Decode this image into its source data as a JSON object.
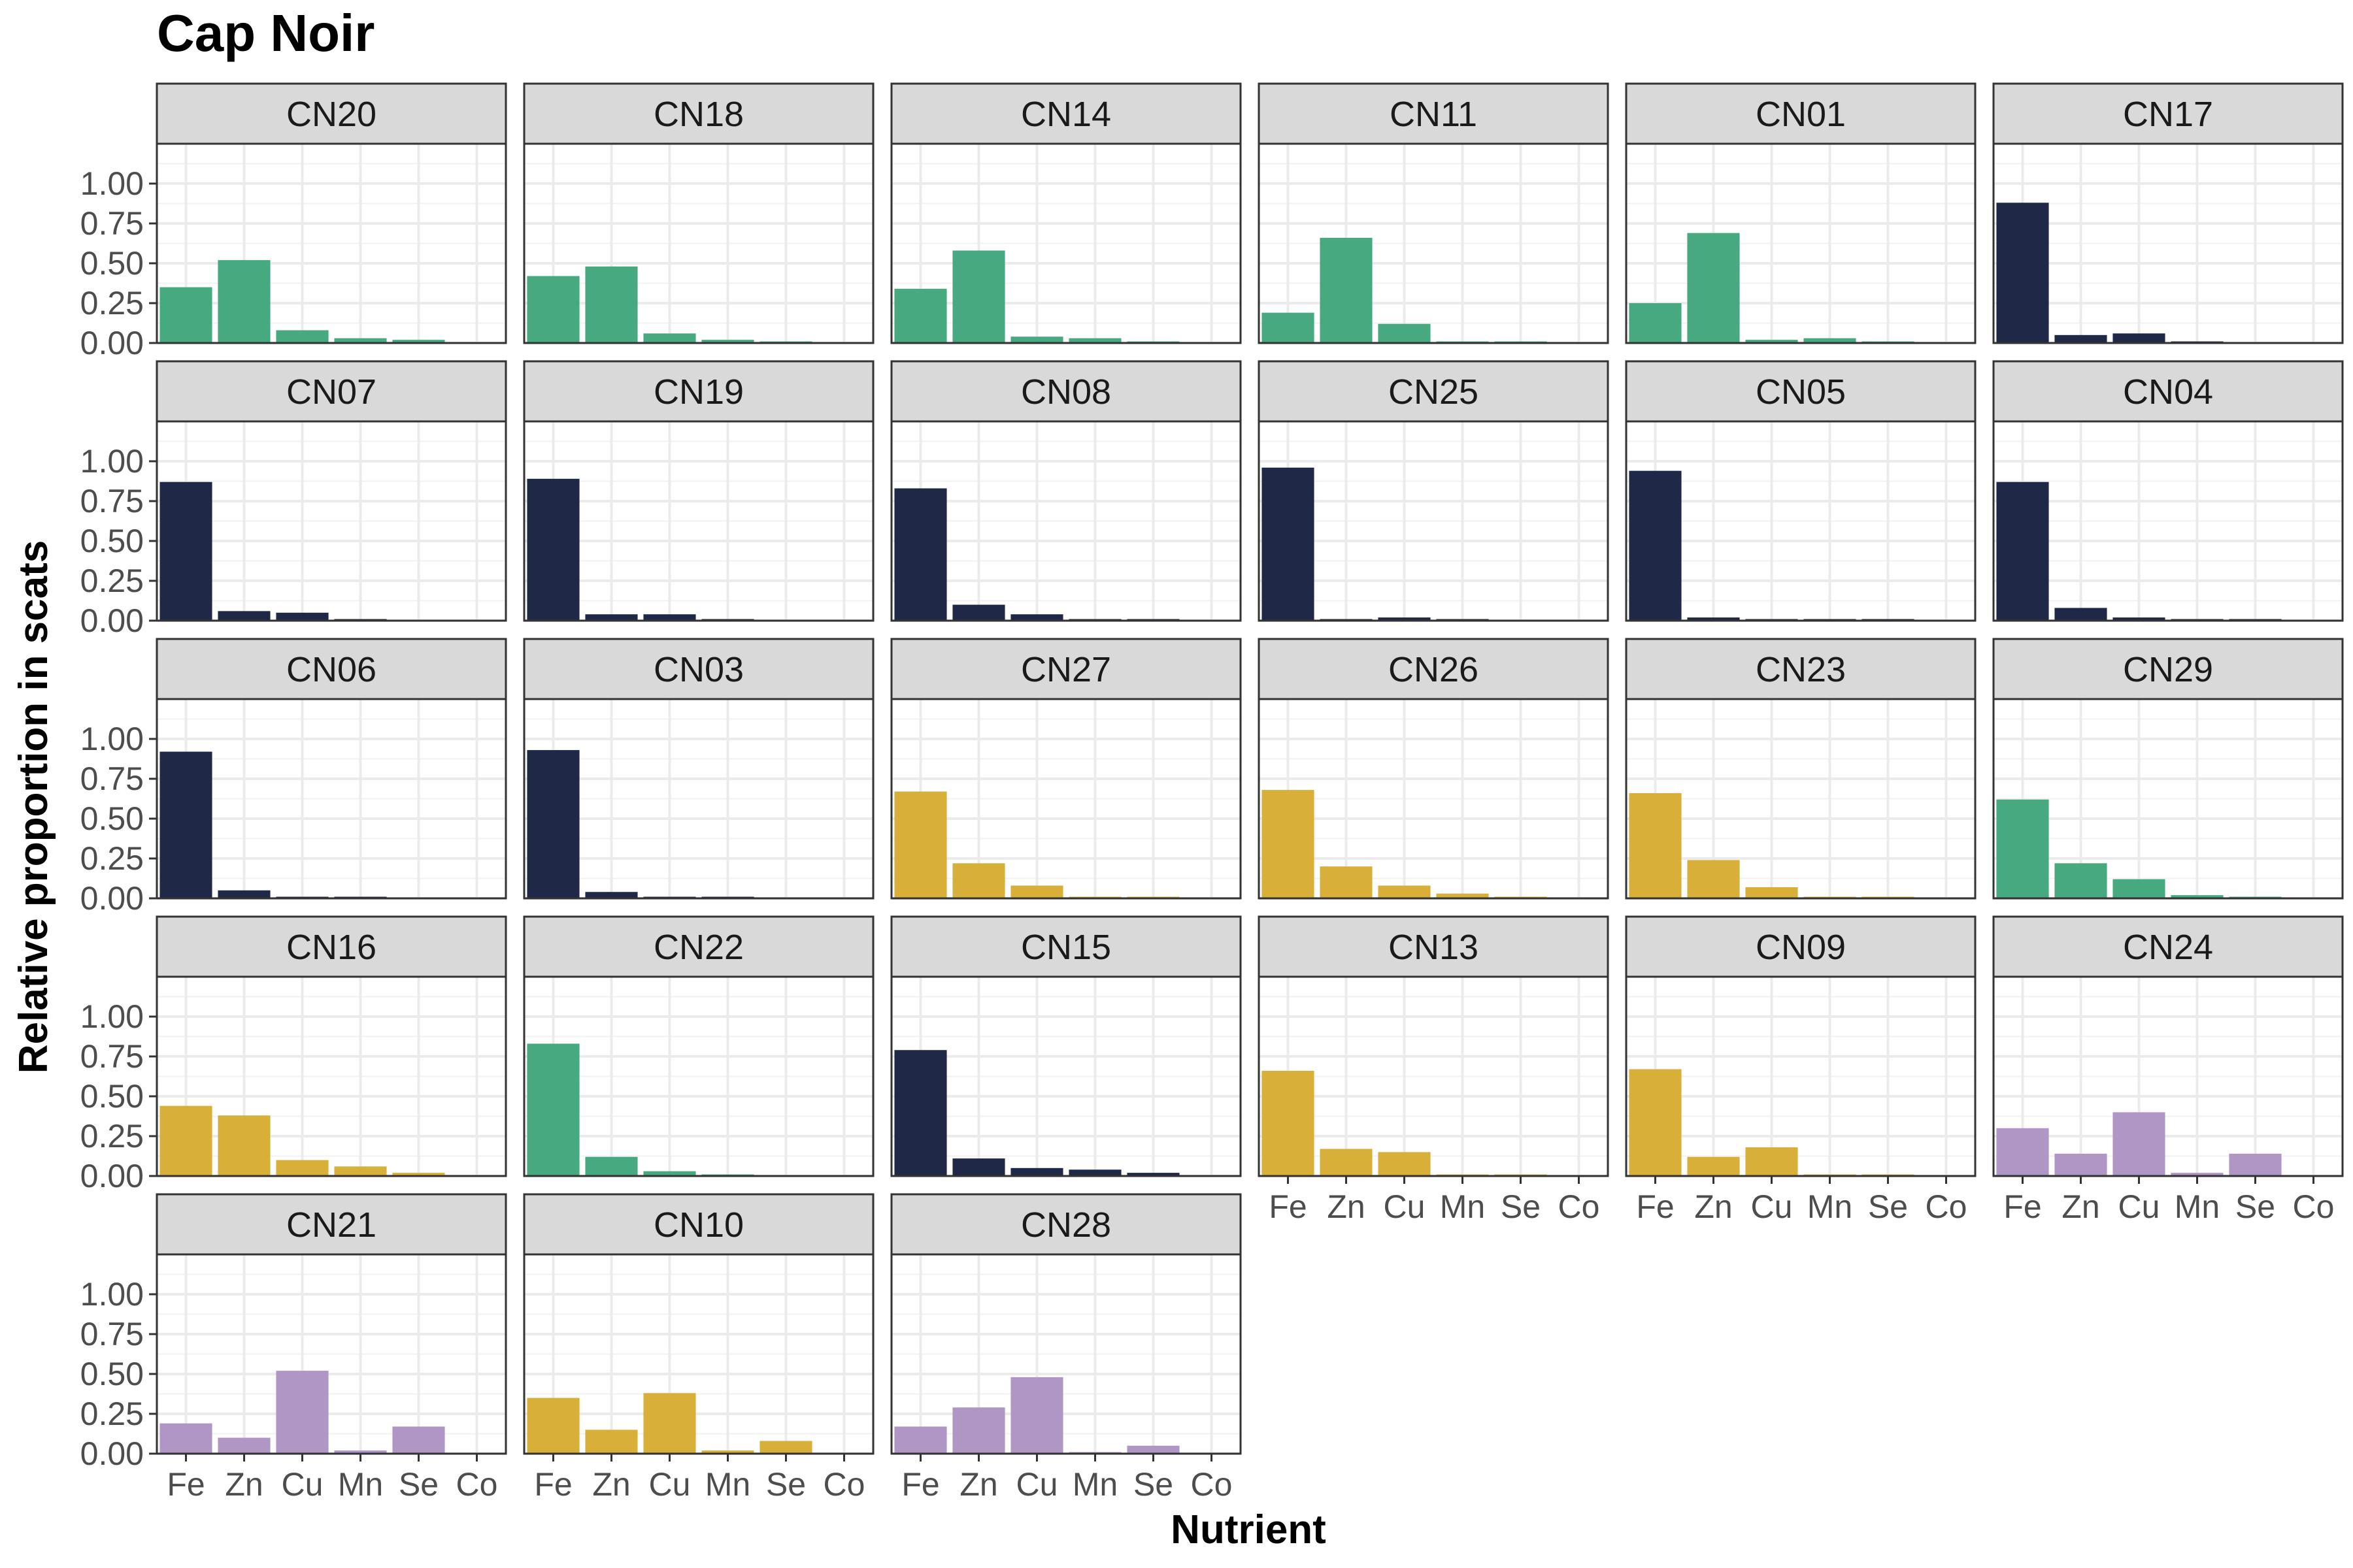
{
  "chart_data": {
    "type": "bar",
    "title": "Cap Noir",
    "xlabel": "Nutrient",
    "ylabel": "Relative proportion in scats",
    "categories": [
      "Fe",
      "Zn",
      "Cu",
      "Mn",
      "Se",
      "Co"
    ],
    "yticks": [
      "0.00",
      "0.25",
      "0.50",
      "0.75",
      "1.00"
    ],
    "ytick_values": [
      0,
      0.25,
      0.5,
      0.75,
      1.0
    ],
    "ylim": [
      0,
      1.25
    ],
    "grid": true,
    "colors": {
      "green": "#46a97f",
      "navy": "#1f2846",
      "gold": "#d8b039",
      "purple": "#af96c4"
    },
    "panels": [
      {
        "name": "CN20",
        "color": "green",
        "values": [
          0.35,
          0.52,
          0.08,
          0.03,
          0.02,
          0.0
        ]
      },
      {
        "name": "CN18",
        "color": "green",
        "values": [
          0.42,
          0.48,
          0.06,
          0.02,
          0.01,
          0.0
        ]
      },
      {
        "name": "CN14",
        "color": "green",
        "values": [
          0.34,
          0.58,
          0.04,
          0.03,
          0.01,
          0.0
        ]
      },
      {
        "name": "CN11",
        "color": "green",
        "values": [
          0.19,
          0.66,
          0.12,
          0.01,
          0.01,
          0.0
        ]
      },
      {
        "name": "CN01",
        "color": "green",
        "values": [
          0.25,
          0.69,
          0.02,
          0.03,
          0.01,
          0.0
        ]
      },
      {
        "name": "CN17",
        "color": "navy",
        "values": [
          0.88,
          0.05,
          0.06,
          0.01,
          0.0,
          0.0
        ]
      },
      {
        "name": "CN07",
        "color": "navy",
        "values": [
          0.87,
          0.06,
          0.05,
          0.01,
          0.0,
          0.0
        ]
      },
      {
        "name": "CN19",
        "color": "navy",
        "values": [
          0.89,
          0.04,
          0.04,
          0.01,
          0.0,
          0.0
        ]
      },
      {
        "name": "CN08",
        "color": "navy",
        "values": [
          0.83,
          0.1,
          0.04,
          0.01,
          0.01,
          0.0
        ]
      },
      {
        "name": "CN25",
        "color": "navy",
        "values": [
          0.96,
          0.01,
          0.02,
          0.01,
          0.0,
          0.0
        ]
      },
      {
        "name": "CN05",
        "color": "navy",
        "values": [
          0.94,
          0.02,
          0.01,
          0.01,
          0.01,
          0.0
        ]
      },
      {
        "name": "CN04",
        "color": "navy",
        "values": [
          0.87,
          0.08,
          0.02,
          0.01,
          0.01,
          0.0
        ]
      },
      {
        "name": "CN06",
        "color": "navy",
        "values": [
          0.92,
          0.05,
          0.01,
          0.01,
          0.0,
          0.0
        ]
      },
      {
        "name": "CN03",
        "color": "navy",
        "values": [
          0.93,
          0.04,
          0.01,
          0.01,
          0.0,
          0.0
        ]
      },
      {
        "name": "CN27",
        "color": "gold",
        "values": [
          0.67,
          0.22,
          0.08,
          0.01,
          0.01,
          0.0
        ]
      },
      {
        "name": "CN26",
        "color": "gold",
        "values": [
          0.68,
          0.2,
          0.08,
          0.03,
          0.01,
          0.0
        ]
      },
      {
        "name": "CN23",
        "color": "gold",
        "values": [
          0.66,
          0.24,
          0.07,
          0.01,
          0.01,
          0.0
        ]
      },
      {
        "name": "CN29",
        "color": "green",
        "values": [
          0.62,
          0.22,
          0.12,
          0.02,
          0.01,
          0.0
        ]
      },
      {
        "name": "CN16",
        "color": "gold",
        "values": [
          0.44,
          0.38,
          0.1,
          0.06,
          0.02,
          0.0
        ]
      },
      {
        "name": "CN22",
        "color": "green",
        "values": [
          0.83,
          0.12,
          0.03,
          0.01,
          0.0,
          0.0
        ]
      },
      {
        "name": "CN15",
        "color": "navy",
        "values": [
          0.79,
          0.11,
          0.05,
          0.04,
          0.02,
          0.0
        ]
      },
      {
        "name": "CN13",
        "color": "gold",
        "values": [
          0.66,
          0.17,
          0.15,
          0.01,
          0.01,
          0.0
        ]
      },
      {
        "name": "CN09",
        "color": "gold",
        "values": [
          0.67,
          0.12,
          0.18,
          0.01,
          0.01,
          0.0
        ]
      },
      {
        "name": "CN24",
        "color": "purple",
        "values": [
          0.3,
          0.14,
          0.4,
          0.02,
          0.14,
          0.0
        ]
      },
      {
        "name": "CN21",
        "color": "purple",
        "values": [
          0.19,
          0.1,
          0.52,
          0.02,
          0.17,
          0.0
        ]
      },
      {
        "name": "CN10",
        "color": "gold",
        "values": [
          0.35,
          0.15,
          0.38,
          0.02,
          0.08,
          0.0
        ]
      },
      {
        "name": "CN28",
        "color": "purple",
        "values": [
          0.17,
          0.29,
          0.48,
          0.01,
          0.05,
          0.0
        ]
      }
    ]
  }
}
